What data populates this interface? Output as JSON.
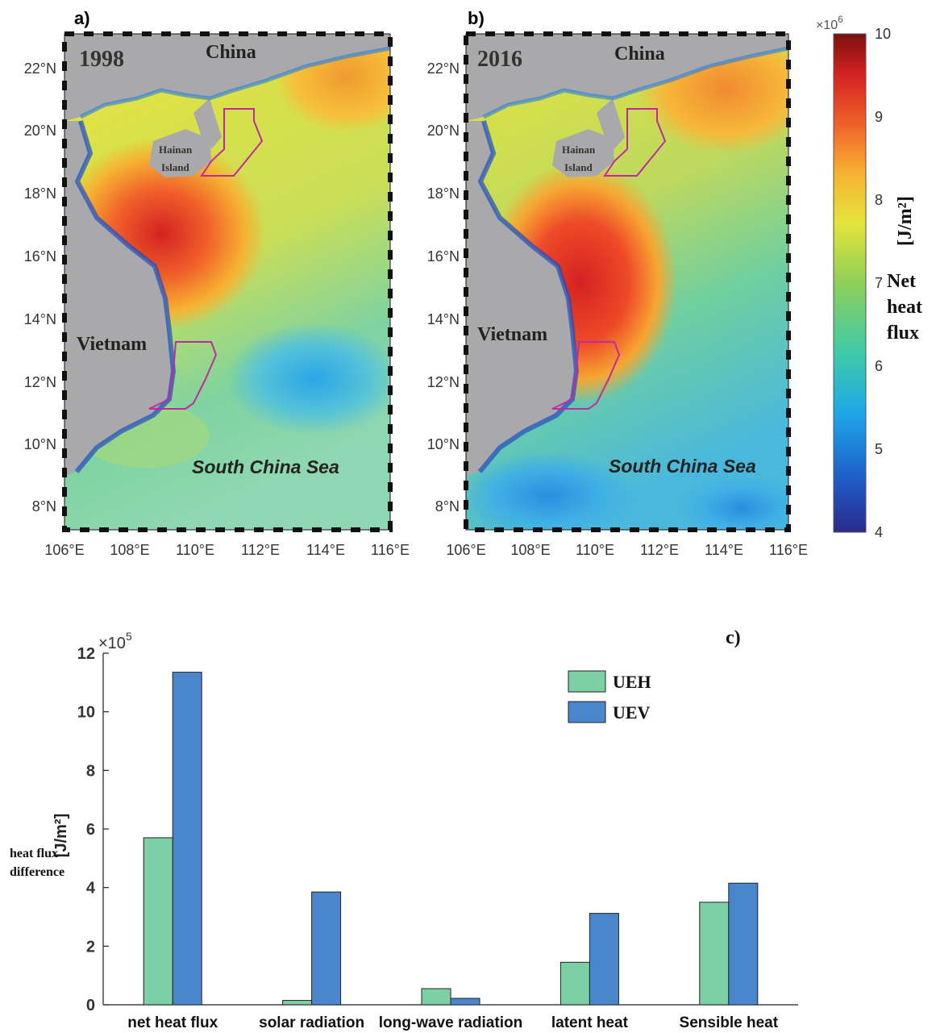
{
  "panel_a": {
    "label": "a)",
    "year": "1998",
    "china": "China",
    "hainan_line1": "Hainan",
    "hainan_line2": "Island",
    "vietnam": "Vietnam",
    "sea": "South China Sea"
  },
  "panel_b": {
    "label": "b)",
    "year": "2016",
    "china": "China",
    "hainan_line1": "Hainan",
    "hainan_line2": "Island",
    "vietnam": "Vietnam",
    "sea": "South China Sea"
  },
  "map_axes": {
    "lat_ticks": [
      "22°N",
      "20°N",
      "18°N",
      "16°N",
      "14°N",
      "12°N",
      "10°N",
      "8°N"
    ],
    "lon_ticks": [
      "106°E",
      "108°E",
      "110°E",
      "112°E",
      "114°E",
      "116°E"
    ]
  },
  "colorbar": {
    "multiplier": "×10",
    "exponent": "6",
    "ticks": [
      "10",
      "9",
      "8",
      "7",
      "6",
      "5",
      "4"
    ],
    "unit": "[J/m²]",
    "label_line1": "Net",
    "label_line2": "heat",
    "label_line3": "flux",
    "colors": [
      "#2b2a8c",
      "#1e5fc8",
      "#1fa8e8",
      "#3fcaa8",
      "#8ecf5a",
      "#e4e43a",
      "#f6b232",
      "#f0602a",
      "#d42222",
      "#7a1010"
    ]
  },
  "chart_data": {
    "type": "bar",
    "panel_label": "c)",
    "categories": [
      "net heat flux",
      "solar radiation",
      "long-wave radiation",
      "latent heat",
      "Sensible heat"
    ],
    "series": [
      {
        "name": "UEH",
        "values": [
          5.7,
          0.15,
          0.55,
          1.45,
          3.5
        ],
        "color": "#7dcfa5"
      },
      {
        "name": "UEV",
        "values": [
          11.35,
          3.85,
          0.22,
          3.12,
          4.15
        ],
        "color": "#4a86cc"
      }
    ],
    "multiplier": "×10",
    "exponent": "5",
    "ylabel_unit": "[J/m²]",
    "ylabel_line1": "heat flux",
    "ylabel_line2": "difference",
    "yticks": [
      0,
      2,
      4,
      6,
      8,
      10,
      12
    ],
    "ylim": [
      0,
      12
    ],
    "legend_position": "top-right"
  }
}
